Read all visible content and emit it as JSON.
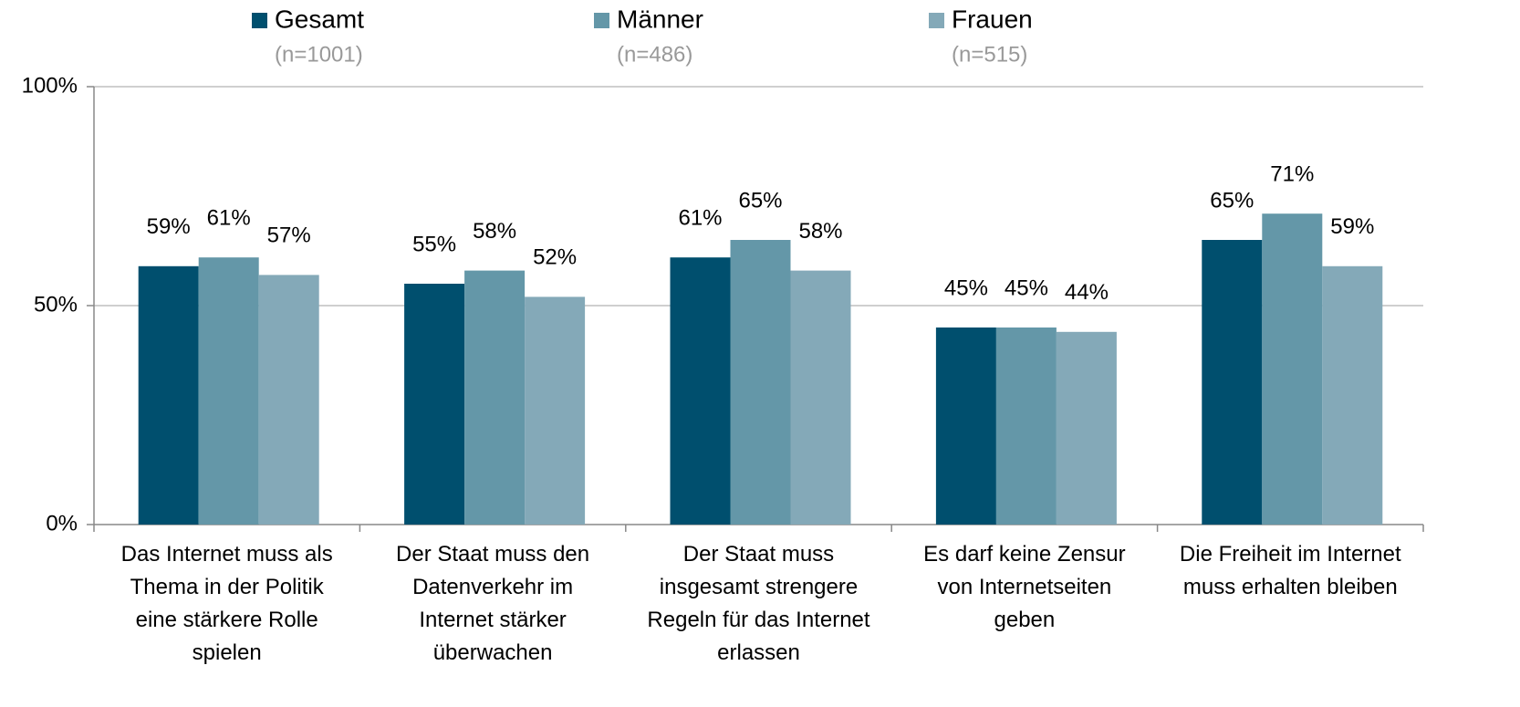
{
  "chart_data": {
    "type": "bar",
    "categories": [
      "Das Internet muss als\nThema in der Politik\neine stärkere Rolle\nspielen",
      "Der Staat muss den\nDatenverkehr im\nInternet stärker\nüberwachen",
      "Der Staat muss\ninsgesamt strengere\nRegeln für das Internet\nerlassen",
      "Es darf keine Zensur\nvon Internetseiten\ngeben",
      "Die Freiheit im Internet\nmuss erhalten bleiben"
    ],
    "series": [
      {
        "name": "Gesamt",
        "sample": "(n=1001)",
        "color": "#004f6e",
        "values": [
          59,
          55,
          61,
          45,
          65
        ],
        "value_labels": [
          "59%",
          "55%",
          "61%",
          "45%",
          "65%"
        ]
      },
      {
        "name": "Männer",
        "sample": "(n=486)",
        "color": "#6497a8",
        "values": [
          61,
          58,
          65,
          45,
          71
        ],
        "value_labels": [
          "61%",
          "58%",
          "65%",
          "45%",
          "71%"
        ]
      },
      {
        "name": "Frauen",
        "sample": "(n=515)",
        "color": "#84a9b8",
        "values": [
          57,
          52,
          58,
          44,
          59
        ],
        "value_labels": [
          "57%",
          "52%",
          "58%",
          "44%",
          "59%"
        ]
      }
    ],
    "ylim": [
      0,
      100
    ],
    "yticks": [
      {
        "value": 0,
        "label": "0%"
      },
      {
        "value": 50,
        "label": "50%"
      },
      {
        "value": 100,
        "label": "100%"
      }
    ],
    "grid": true,
    "legend": "top"
  }
}
